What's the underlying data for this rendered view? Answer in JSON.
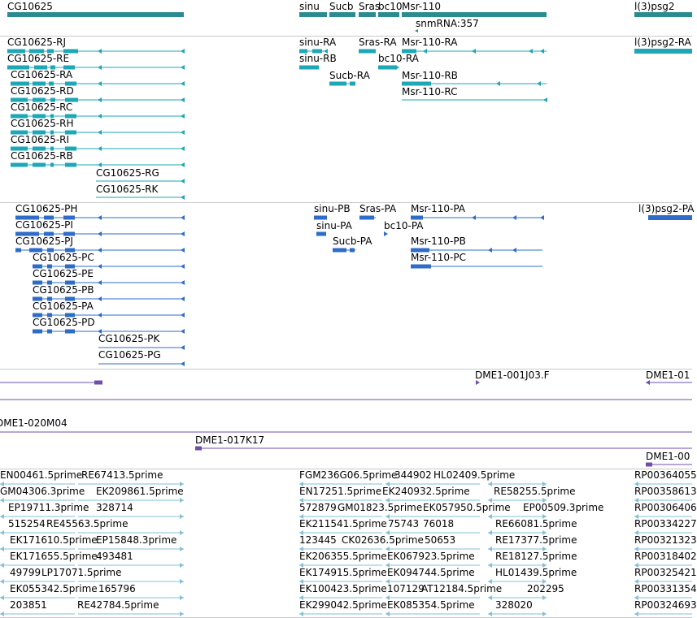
{
  "colors": {
    "gene": "#2a8c91",
    "transcript": "#1ea7b6",
    "protein": "#2f6cc7",
    "bac": "#6f4fa9",
    "est": "#86bfd8",
    "separator": "#c9c9c9"
  },
  "tracks": {
    "genes": {
      "labels": [
        "CG10625",
        "sinu",
        "Sucb",
        "Sras",
        "bc10",
        "Msr-110",
        "snmRNA:357",
        "l(3)psg2"
      ]
    },
    "transcripts": {
      "labels": [
        "CG10625-RJ",
        "CG10625-RE",
        "CG10625-RA",
        "CG10625-RD",
        "CG10625-RC",
        "CG10625-RH",
        "CG10625-RI",
        "CG10625-RB",
        "CG10625-RG",
        "CG10625-RK",
        "sinu-RA",
        "sinu-RB",
        "Sras-RA",
        "bc10-RA",
        "Sucb-RA",
        "Msr-110-RA",
        "Msr-110-RB",
        "Msr-110-RC",
        "l(3)psg2-RA"
      ]
    },
    "proteins": {
      "labels": [
        "CG10625-PH",
        "CG10625-PI",
        "CG10625-PJ",
        "CG10625-PC",
        "CG10625-PE",
        "CG10625-PB",
        "CG10625-PA",
        "CG10625-PD",
        "CG10625-PK",
        "CG10625-PG",
        "sinu-PB",
        "sinu-PA",
        "Sras-PA",
        "bc10-PA",
        "Sucb-PA",
        "Msr-110-PA",
        "Msr-110-PB",
        "Msr-110-PC",
        "l(3)psg2-PA"
      ]
    },
    "bac": {
      "labels": [
        "DME1-001J03.F",
        "DME1-01",
        "DME1-020M04",
        "DME1-017K17",
        "DME1-00"
      ]
    },
    "est": {
      "labels": [
        "EN00461.5prime",
        "RE67413.5prime",
        "GM04306.3prime",
        "EK209861.5prime",
        "EP19711.3prime",
        "328714",
        "515254",
        "RE45563.5prime",
        "EK171610.5prime",
        "EP15848.3prime",
        "EK171655.5prime",
        "493481",
        "49799",
        "LP17071.5prime",
        "EK055342.5prime",
        "165796",
        "203851",
        "RE42784.5prime",
        "FGM236G06.5prime",
        "344902",
        "HL02409.5prime",
        "EN17251.5prime",
        "EK240932.5prime",
        "RE58255.5prime",
        "572879",
        "GM01823.5prime",
        "EK057950.5prime",
        "EP00509.3prime",
        "EK211541.5prime",
        "75743",
        "76018",
        "RE66081.5prime",
        "123445",
        "CK02636.5prime",
        "50653",
        "RE17377.5prime",
        "EK206355.5prime",
        "EK067923.5prime",
        "RE18127.5prime",
        "EK174915.5prime",
        "EK094744.5prime",
        "HL01439.5prime",
        "EK100423.5prime",
        "107129",
        "AT12184.5prime",
        "202295",
        "EK299042.5prime",
        "EK085354.5prime",
        "328020",
        "RP00364055",
        "RP00358613",
        "RP00306406",
        "RP00334227",
        "RP00321323",
        "RP00318402",
        "RP00325421",
        "RP00331354",
        "RP00324693"
      ]
    }
  }
}
